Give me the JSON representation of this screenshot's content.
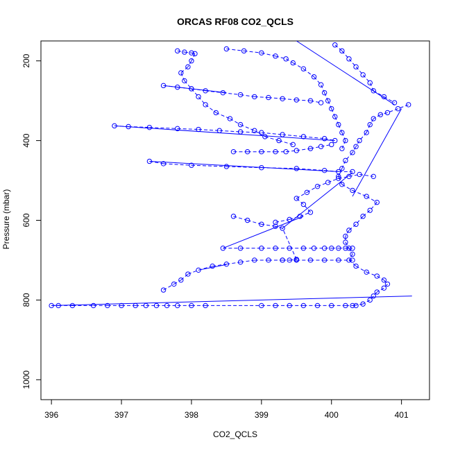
{
  "chart_data": {
    "type": "scatter",
    "title": "ORCAS RF08 CO2_QCLS",
    "xlabel": "CO2_QCLS",
    "ylabel": "Pressure (mbar)",
    "xlim": [
      395.85,
      401.4
    ],
    "ylim": [
      1050,
      150
    ],
    "y_reversed": true,
    "x_ticks": [
      396,
      397,
      398,
      399,
      400,
      401
    ],
    "y_ticks": [
      200,
      400,
      600,
      800,
      1000
    ],
    "grid": false,
    "legend": "none",
    "marker": "open-circle",
    "line_style": "dashed-connecting",
    "color": "#0000ff",
    "series": [
      {
        "points": [
          [
            401.1,
            310
          ],
          [
            400.95,
            320
          ],
          [
            400.8,
            330
          ],
          [
            400.7,
            335
          ],
          [
            400.6,
            345
          ],
          [
            400.55,
            360
          ],
          [
            400.5,
            380
          ],
          [
            400.4,
            400
          ],
          [
            400.35,
            415
          ],
          [
            400.3,
            430
          ],
          [
            400.2,
            450
          ],
          [
            400.15,
            470
          ],
          [
            400.1,
            490
          ],
          [
            400.15,
            510
          ],
          [
            400.3,
            525
          ],
          [
            400.5,
            540
          ],
          [
            400.65,
            555
          ],
          [
            400.55,
            575
          ],
          [
            400.45,
            590
          ],
          [
            400.35,
            610
          ],
          [
            400.25,
            625
          ],
          [
            400.2,
            640
          ],
          [
            400.2,
            655
          ],
          [
            400.25,
            670
          ],
          [
            400.3,
            685
          ],
          [
            400.25,
            700
          ],
          [
            400.35,
            715
          ],
          [
            400.5,
            730
          ],
          [
            400.65,
            740
          ],
          [
            400.75,
            750
          ],
          [
            400.8,
            760
          ],
          [
            400.75,
            770
          ],
          [
            400.65,
            780
          ],
          [
            400.6,
            790
          ],
          [
            400.55,
            800
          ],
          [
            400.45,
            810
          ],
          [
            400.3,
            814
          ]
        ]
      },
      {
        "points": [
          [
            396.0,
            814
          ],
          [
            396.1,
            814
          ],
          [
            396.3,
            814
          ],
          [
            396.6,
            814
          ],
          [
            396.8,
            814
          ],
          [
            397.0,
            814
          ],
          [
            397.2,
            814
          ],
          [
            397.35,
            814
          ],
          [
            397.5,
            814
          ],
          [
            397.65,
            814
          ],
          [
            397.8,
            814
          ],
          [
            398.0,
            814
          ],
          [
            398.2,
            814
          ],
          [
            399.0,
            814
          ],
          [
            399.2,
            814
          ],
          [
            399.4,
            814
          ],
          [
            399.6,
            814
          ],
          [
            399.8,
            814
          ],
          [
            400.0,
            814
          ],
          [
            400.2,
            814
          ],
          [
            400.35,
            814
          ]
        ]
      },
      {
        "points": [
          [
            397.6,
            775
          ],
          [
            397.75,
            760
          ],
          [
            397.85,
            750
          ],
          [
            397.95,
            735
          ],
          [
            398.1,
            725
          ],
          [
            398.3,
            715
          ],
          [
            398.5,
            710
          ],
          [
            398.7,
            705
          ],
          [
            398.9,
            700
          ],
          [
            399.1,
            700
          ],
          [
            399.3,
            700
          ],
          [
            399.5,
            700
          ],
          [
            399.7,
            700
          ],
          [
            399.9,
            700
          ],
          [
            400.1,
            700
          ],
          [
            400.3,
            700
          ]
        ]
      },
      {
        "points": [
          [
            398.45,
            670
          ],
          [
            398.7,
            670
          ],
          [
            399.0,
            670
          ],
          [
            399.2,
            670
          ],
          [
            399.4,
            670
          ],
          [
            399.6,
            670
          ],
          [
            399.75,
            670
          ],
          [
            399.9,
            670
          ],
          [
            400.0,
            670
          ],
          [
            400.1,
            670
          ],
          [
            400.2,
            670
          ],
          [
            400.3,
            670
          ]
        ]
      },
      {
        "points": [
          [
            399.2,
            605
          ],
          [
            399.4,
            598
          ],
          [
            399.55,
            590
          ],
          [
            399.7,
            580
          ],
          [
            399.6,
            560
          ],
          [
            399.5,
            545
          ],
          [
            399.65,
            530
          ],
          [
            399.8,
            515
          ],
          [
            399.95,
            505
          ],
          [
            400.1,
            495
          ],
          [
            400.25,
            490
          ],
          [
            400.4,
            485
          ],
          [
            400.6,
            490
          ]
        ]
      },
      {
        "points": [
          [
            397.4,
            452
          ],
          [
            397.6,
            458
          ],
          [
            398.0,
            462
          ],
          [
            398.5,
            465
          ],
          [
            399.0,
            468
          ],
          [
            399.5,
            470
          ],
          [
            399.9,
            475
          ],
          [
            400.1,
            478
          ],
          [
            400.3,
            478
          ]
        ]
      },
      {
        "points": [
          [
            398.6,
            428
          ],
          [
            398.8,
            428
          ],
          [
            399.0,
            428
          ],
          [
            399.2,
            428
          ],
          [
            399.35,
            428
          ],
          [
            399.5,
            425
          ],
          [
            399.7,
            420
          ],
          [
            399.85,
            415
          ],
          [
            400.0,
            410
          ]
        ]
      },
      {
        "points": [
          [
            396.9,
            363
          ],
          [
            397.1,
            365
          ],
          [
            397.4,
            367
          ],
          [
            397.8,
            370
          ],
          [
            398.1,
            372
          ],
          [
            398.4,
            375
          ],
          [
            398.7,
            378
          ],
          [
            399.0,
            380
          ],
          [
            399.3,
            385
          ],
          [
            399.6,
            390
          ],
          [
            399.9,
            395
          ],
          [
            400.05,
            400
          ]
        ]
      },
      {
        "points": [
          [
            397.6,
            262
          ],
          [
            397.8,
            266
          ],
          [
            398.0,
            270
          ],
          [
            398.2,
            275
          ],
          [
            398.45,
            280
          ],
          [
            398.7,
            285
          ],
          [
            398.9,
            290
          ],
          [
            399.1,
            292
          ],
          [
            399.3,
            295
          ],
          [
            399.5,
            298
          ],
          [
            399.7,
            300
          ],
          [
            399.85,
            305
          ]
        ]
      },
      {
        "points": [
          [
            397.8,
            175
          ],
          [
            397.9,
            178
          ],
          [
            398.0,
            180
          ],
          [
            398.05,
            182
          ],
          [
            398.0,
            200
          ],
          [
            397.95,
            215
          ],
          [
            397.85,
            230
          ],
          [
            397.9,
            250
          ],
          [
            398.0,
            270
          ],
          [
            398.1,
            290
          ],
          [
            398.2,
            310
          ],
          [
            398.35,
            330
          ],
          [
            398.55,
            345
          ],
          [
            398.7,
            360
          ],
          [
            398.9,
            375
          ],
          [
            399.05,
            390
          ],
          [
            399.25,
            400
          ],
          [
            399.45,
            410
          ]
        ]
      },
      {
        "points": [
          [
            398.5,
            170
          ],
          [
            398.75,
            175
          ],
          [
            399.0,
            180
          ],
          [
            399.2,
            188
          ],
          [
            399.35,
            195
          ],
          [
            399.45,
            205
          ],
          [
            399.6,
            220
          ],
          [
            399.75,
            240
          ],
          [
            399.85,
            260
          ],
          [
            399.9,
            280
          ],
          [
            399.95,
            300
          ],
          [
            400.0,
            320
          ],
          [
            400.05,
            340
          ],
          [
            400.1,
            360
          ],
          [
            400.15,
            380
          ],
          [
            400.2,
            400
          ],
          [
            400.15,
            420
          ]
        ]
      },
      {
        "points": [
          [
            400.05,
            160
          ],
          [
            400.15,
            175
          ],
          [
            400.25,
            195
          ],
          [
            400.35,
            215
          ],
          [
            400.45,
            235
          ],
          [
            400.55,
            255
          ],
          [
            400.6,
            275
          ],
          [
            400.75,
            290
          ],
          [
            400.9,
            305
          ]
        ]
      },
      {
        "points": [
          [
            399.3,
            700
          ],
          [
            399.4,
            700
          ],
          [
            399.5,
            698
          ],
          [
            399.3,
            620
          ],
          [
            399.2,
            615
          ],
          [
            399.0,
            610
          ],
          [
            398.8,
            600
          ],
          [
            398.6,
            590
          ]
        ]
      }
    ],
    "connector_lines": [
      [
        [
          396.0,
          814
        ],
        [
          401.15,
          790
        ]
      ],
      [
        [
          397.4,
          452
        ],
        [
          400.1,
          478
        ]
      ],
      [
        [
          396.9,
          363
        ],
        [
          400.05,
          400
        ]
      ],
      [
        [
          397.6,
          262
        ],
        [
          398.5,
          280
        ]
      ],
      [
        [
          398.45,
          670
        ],
        [
          399.6,
          590
        ]
      ],
      [
        [
          399.3,
          620
        ],
        [
          400.3,
          480
        ]
      ],
      [
        [
          399.5,
          150
        ],
        [
          400.9,
          310
        ]
      ],
      [
        [
          400.3,
          540
        ],
        [
          401.0,
          320
        ]
      ],
      [
        [
          398.1,
          725
        ],
        [
          398.5,
          711
        ]
      ]
    ]
  }
}
